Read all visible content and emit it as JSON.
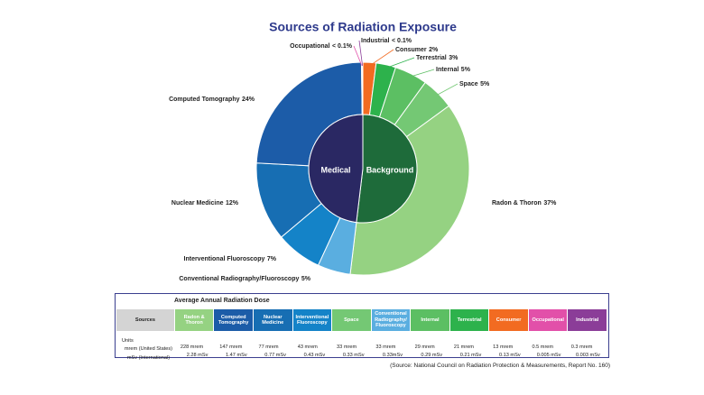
{
  "chart_data": {
    "type": "sunburst",
    "title": "Sources of Radiation Exposure",
    "groups": [
      {
        "name": "Background",
        "color": "#1e6b3a",
        "categories": [
          "Consumer",
          "Terrestrial",
          "Internal",
          "Space",
          "Radon & Thoron"
        ],
        "values": [
          2,
          3,
          5,
          5,
          37
        ],
        "value_labels": [
          "2%",
          "3%",
          "5%",
          "5%",
          "37%"
        ],
        "colors": [
          "#f26b21",
          "#2db24c",
          "#5cbf63",
          "#74c874",
          "#95d282"
        ]
      },
      {
        "name": "Medical",
        "color": "#2a2863",
        "categories": [
          "Conventional Radiography/Fluoroscopy",
          "Interventional Fluoroscopy",
          "Nuclear Medicine",
          "Computed Tomography",
          "Occupational",
          "Industrial"
        ],
        "values": [
          5,
          7,
          12,
          24,
          0.1,
          0.1
        ],
        "value_labels": [
          "5%",
          "7%",
          "12%",
          "24%",
          "< 0.1%",
          "< 0.1%"
        ],
        "colors": [
          "#5aaee0",
          "#1483c8",
          "#176eb3",
          "#1c5ca8",
          "#e250a9",
          "#8b3d98"
        ]
      }
    ]
  },
  "table": {
    "title": "Average Annual Radiation Dose",
    "header": [
      "Sources",
      "Radon & Thoron",
      "Computed Tomography",
      "Nuclear Medicine",
      "Interventional Fluoroscopy",
      "Space",
      "Conventional Radiography/ Fluoroscopy",
      "Internal",
      "Terrestrial",
      "Consumer",
      "Occupational",
      "Industrial"
    ],
    "header_colors": [
      "#d4d4d4",
      "#95d282",
      "#1c5ca8",
      "#176eb3",
      "#1483c8",
      "#74c874",
      "#5aaee0",
      "#5cbf63",
      "#2db24c",
      "#f26b21",
      "#e250a9",
      "#8b3d98"
    ],
    "units": [
      "Units",
      "mrem (United States)",
      "mSv (International)"
    ],
    "mrem": [
      "228 mrem",
      "147 mrem",
      "77 mrem",
      "43 mrem",
      "33 mrem",
      "33 mrem",
      "29 mrem",
      "21 mrem",
      "13 mrem",
      "0.5 mrem",
      "0.3 mrem"
    ],
    "msv": [
      "2.28 mSv",
      "1.47 mSv",
      "0.77 mSv",
      "0.43 mSv",
      "0.33 mSv",
      "0.33mSv",
      "0.29 mSv",
      "0.21 mSv",
      "0.13 mSv",
      "0.005 mSv",
      "0.003 mSv"
    ]
  },
  "source": "(Source: National Council on Radiation Protection & Measurements, Report No. 160)"
}
